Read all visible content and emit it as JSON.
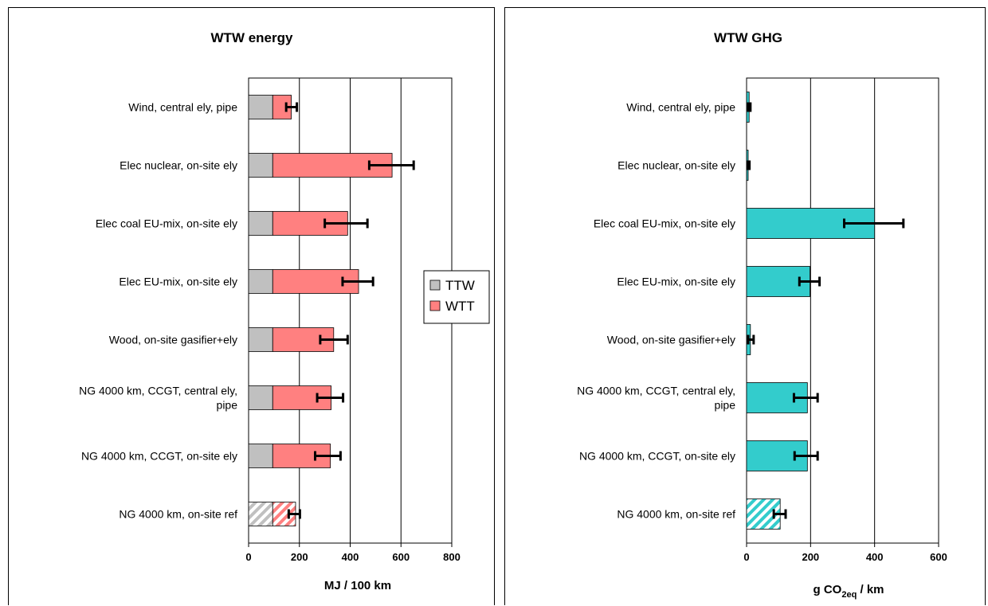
{
  "chart_data": [
    {
      "type": "bar",
      "orientation": "horizontal",
      "stacked": true,
      "title": "WTW energy",
      "xlabel": "MJ / 100 km",
      "xlim": [
        0,
        800
      ],
      "xticks": [
        "0",
        "200",
        "400",
        "600",
        "800"
      ],
      "grid": "vertical",
      "legend": {
        "placement": "right",
        "items": [
          "TTW",
          "WTT"
        ]
      },
      "categories": [
        "Wind, central ely, pipe",
        "Elec nuclear, on-site ely",
        "Elec coal EU-mix, on-site ely",
        "Elec EU-mix, on-site ely",
        "Wood, on-site gasifier+ely",
        [
          "NG 4000 km, CCGT, central ely,",
          "pipe"
        ],
        "NG 4000 km, CCGT, on-site ely",
        "NG 4000 km, on-site ref"
      ],
      "series": [
        {
          "name": "TTW",
          "color": "#c0c0c0",
          "values": [
            95,
            95,
            95,
            95,
            95,
            95,
            95,
            95
          ]
        },
        {
          "name": "WTT",
          "color": "#ff8080",
          "values": [
            73,
            470,
            295,
            338,
            240,
            230,
            227,
            90
          ]
        }
      ],
      "error_bars": {
        "low": [
          148,
          475,
          300,
          370,
          282,
          270,
          262,
          158
        ],
        "high": [
          190,
          650,
          468,
          490,
          390,
          372,
          362,
          202
        ]
      },
      "hatched_categories": [
        "NG 4000 km, on-site ref"
      ]
    },
    {
      "type": "bar",
      "orientation": "horizontal",
      "title": "WTW GHG",
      "xlabel": {
        "main": "g CO",
        "sub": "2eq",
        "tail": " /  km"
      },
      "xlim": [
        0,
        600
      ],
      "xticks": [
        "0",
        "200",
        "400",
        "600"
      ],
      "grid": "vertical",
      "categories": [
        "Wind, central ely, pipe",
        "Elec nuclear, on-site ely",
        "Elec coal EU-mix, on-site ely",
        "Elec EU-mix, on-site ely",
        "Wood, on-site gasifier+ely",
        [
          "NG 4000 km, CCGT, central ely,",
          "pipe"
        ],
        "NG 4000 km, CCGT, on-site ely",
        "NG 4000 km, on-site ref"
      ],
      "series": [
        {
          "name": "",
          "color": "#33cccc",
          "values": [
            8,
            5,
            400,
            198,
            12,
            190,
            190,
            105
          ]
        }
      ],
      "error_bars": {
        "low": [
          5,
          3,
          305,
          165,
          5,
          148,
          150,
          85
        ],
        "high": [
          12,
          9,
          490,
          228,
          22,
          222,
          222,
          122
        ]
      },
      "hatched_categories": [
        "NG 4000 km, on-site ref"
      ]
    }
  ]
}
